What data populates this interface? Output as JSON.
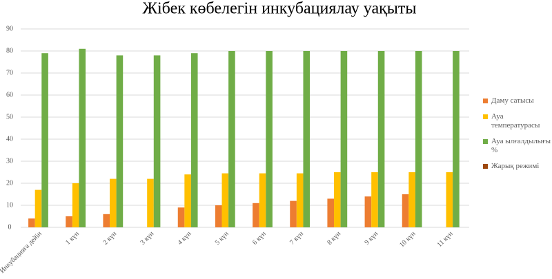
{
  "chart_data": {
    "type": "bar",
    "title": "Жібек көбелегін инкубациялау уақыты",
    "categories": [
      "Инкубацияға дейін",
      "1 күн",
      "2 күн",
      "3 күн",
      "4 күн",
      "5 күн",
      "6 күн",
      "7 күн",
      "8 күн",
      "9 күн",
      "10 күн",
      "11 күн"
    ],
    "series": [
      {
        "name": "Даму сатысы",
        "color": "#ed7d31",
        "values": [
          4,
          5,
          6,
          null,
          9,
          10,
          11,
          12,
          13,
          14,
          15,
          null
        ]
      },
      {
        "name": "Ауа температурасы",
        "color": "#ffc000",
        "values": [
          17,
          20,
          22,
          22,
          24,
          24.5,
          24.5,
          24.5,
          25,
          25,
          25,
          25
        ]
      },
      {
        "name": "Ауа ылғалдылығы %",
        "color": "#70ad47",
        "values": [
          79,
          81,
          78,
          78,
          79,
          80,
          80,
          80,
          80,
          80,
          80,
          80
        ]
      },
      {
        "name": "Жарық режимі",
        "color": "#9e480e",
        "values": [
          null,
          null,
          null,
          null,
          null,
          null,
          null,
          null,
          null,
          null,
          null,
          null
        ]
      }
    ],
    "ylim": [
      0,
      90
    ],
    "yticks": [
      0,
      10,
      20,
      30,
      40,
      50,
      60,
      70,
      80,
      90
    ],
    "grid": true,
    "legend": "right"
  }
}
